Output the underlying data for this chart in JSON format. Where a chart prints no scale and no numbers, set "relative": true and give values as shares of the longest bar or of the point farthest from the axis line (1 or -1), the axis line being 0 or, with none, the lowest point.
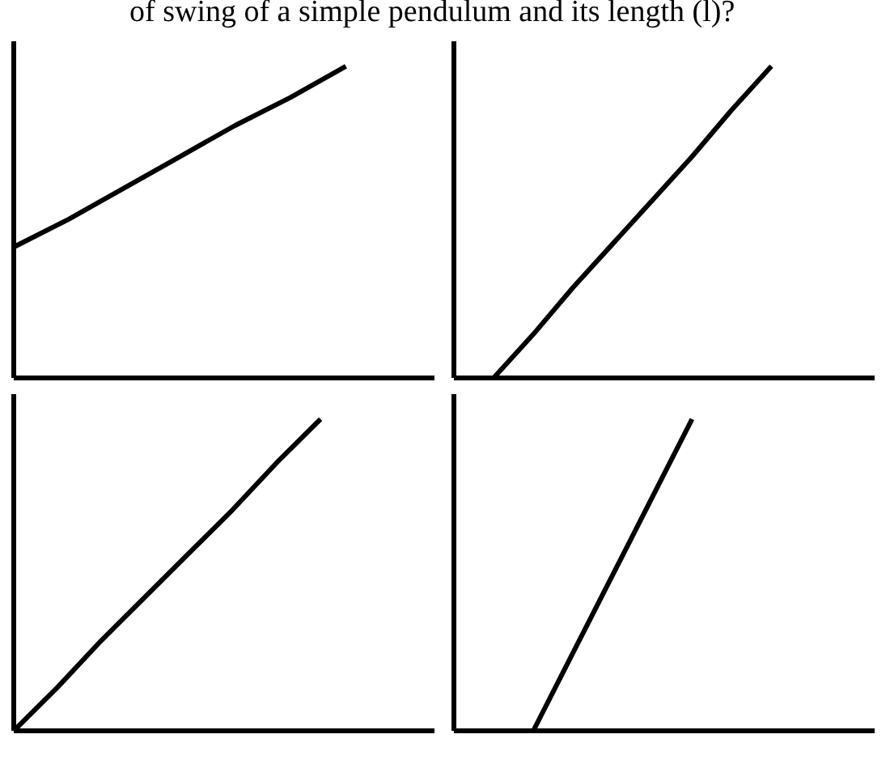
{
  "chart_data": [
    {
      "type": "line",
      "relative": true,
      "title": "of swing of a simple pendulum and its length (l)?",
      "tick_labels": false,
      "grid": false,
      "categories": [
        null,
        null,
        null,
        null,
        null,
        null,
        null,
        null
      ],
      "series": [
        {
          "color": "#000000",
          "values": [
            0.42,
            0.51,
            0.61,
            0.71,
            0.81,
            0.9,
            1,
            null
          ]
        }
      ]
    },
    {
      "type": "line",
      "relative": true,
      "tick_labels": false,
      "grid": false,
      "categories": [
        null,
        null,
        null,
        null,
        null,
        null,
        null,
        null,
        null,
        null,
        null
      ],
      "series": [
        {
          "color": "#000000",
          "values": [
            null,
            0,
            0.14,
            0.29,
            0.43,
            0.57,
            0.71,
            0.86,
            1,
            null,
            null
          ]
        }
      ]
    },
    {
      "type": "line",
      "relative": true,
      "tick_labels": false,
      "grid": false,
      "categories": [
        null,
        null,
        null,
        null,
        null,
        null,
        null,
        null,
        null,
        null
      ],
      "series": [
        {
          "color": "#000000",
          "values": [
            0,
            0.14,
            0.29,
            0.43,
            0.57,
            0.71,
            0.86,
            1,
            null,
            null
          ]
        }
      ]
    },
    {
      "type": "line",
      "relative": true,
      "tick_labels": false,
      "grid": false,
      "categories": [
        null,
        null,
        null,
        null,
        null,
        null,
        null,
        null,
        null,
        null,
        null
      ],
      "series": [
        {
          "color": "#000000",
          "values": [
            null,
            null,
            0,
            0.25,
            0.5,
            0.75,
            1,
            null,
            null,
            null,
            null
          ]
        }
      ]
    }
  ]
}
